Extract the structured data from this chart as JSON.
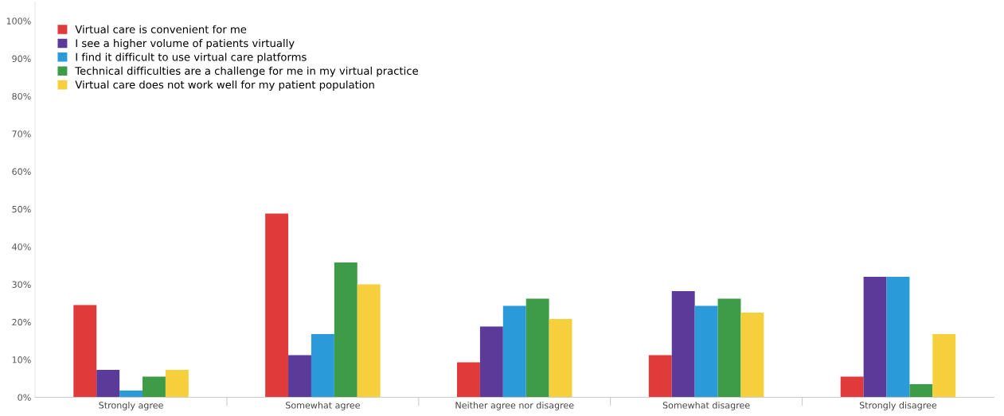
{
  "chart_data": {
    "type": "bar",
    "categories": [
      "Strongly agree",
      "Somewhat agree",
      "Neither agree nor disagree",
      "Somewhat disagree",
      "Strongly disagree"
    ],
    "series": [
      {
        "name": "Virtual care is convenient for me",
        "color": "#e03a3a",
        "values": [
          24.5,
          48.8,
          9.3,
          11.2,
          5.5
        ]
      },
      {
        "name": "I see a higher volume of patients virtually",
        "color": "#5b3a9a",
        "values": [
          7.3,
          11.2,
          18.8,
          28.2,
          32
        ]
      },
      {
        "name": "I find it difficult to use virtual care platforms",
        "color": "#2a9ad8",
        "values": [
          1.8,
          16.8,
          24.3,
          24.3,
          32
        ]
      },
      {
        "name": "Technical difficulties are a challenge for me in my virtual practice",
        "color": "#3c9c48",
        "values": [
          5.5,
          35.8,
          26.2,
          26.2,
          3.5
        ]
      },
      {
        "name": "Virtual care does not work well for my patient population",
        "color": "#f5d03c",
        "values": [
          7.3,
          30,
          20.8,
          22.5,
          16.8
        ]
      }
    ],
    "ylim": [
      0,
      105
    ],
    "yticks": [
      {
        "value": 0,
        "label": "0%"
      },
      {
        "value": 10,
        "label": "10%"
      },
      {
        "value": 20,
        "label": "20%"
      },
      {
        "value": 30,
        "label": "30%"
      },
      {
        "value": 40,
        "label": "40%"
      },
      {
        "value": 50,
        "label": "50%"
      },
      {
        "value": 60,
        "label": "60%"
      },
      {
        "value": 70,
        "label": "70%"
      },
      {
        "value": 80,
        "label": "80%"
      },
      {
        "value": 90,
        "label": "90%"
      },
      {
        "value": 100,
        "label": "100%"
      }
    ],
    "legend": "top left",
    "grid": false
  }
}
